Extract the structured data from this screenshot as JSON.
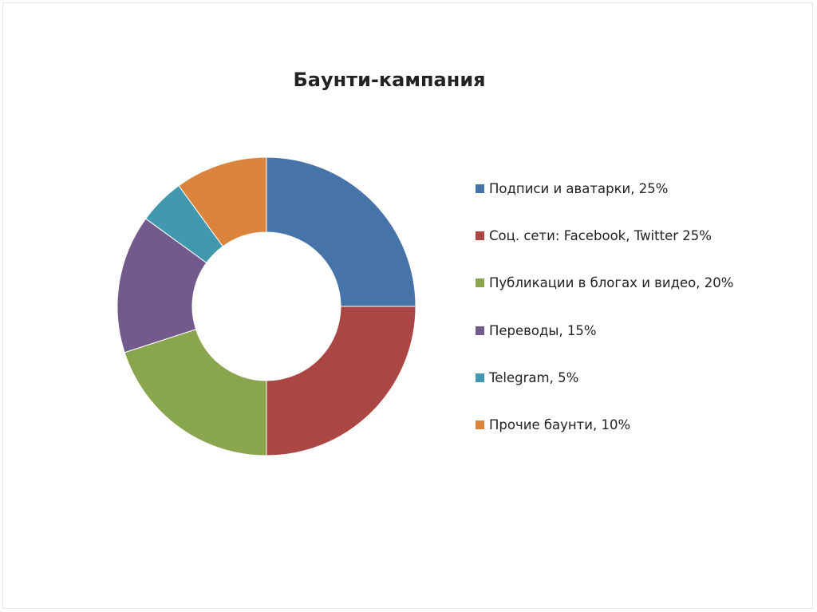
{
  "chart_data": {
    "type": "pie",
    "donut": true,
    "title": "Баунти-кампания",
    "legend_position": "right",
    "slices": [
      {
        "label": "Подписи и аватарки, 25%",
        "value": 25,
        "color": "#4674A9"
      },
      {
        "label": "Соц. сети: Facebook, Twitter 25%",
        "value": 25,
        "color": "#AA4744"
      },
      {
        "label": "Публикации в блогах и видео, 20%",
        "value": 20,
        "color": "#89A54E"
      },
      {
        "label": "Переводы, 15%",
        "value": 15,
        "color": "#725A8C"
      },
      {
        "label": "Telegram, 5%",
        "value": 5,
        "color": "#4198AF"
      },
      {
        "label": "Прочие баунти, 10%",
        "value": 10,
        "color": "#DB843D"
      }
    ]
  }
}
